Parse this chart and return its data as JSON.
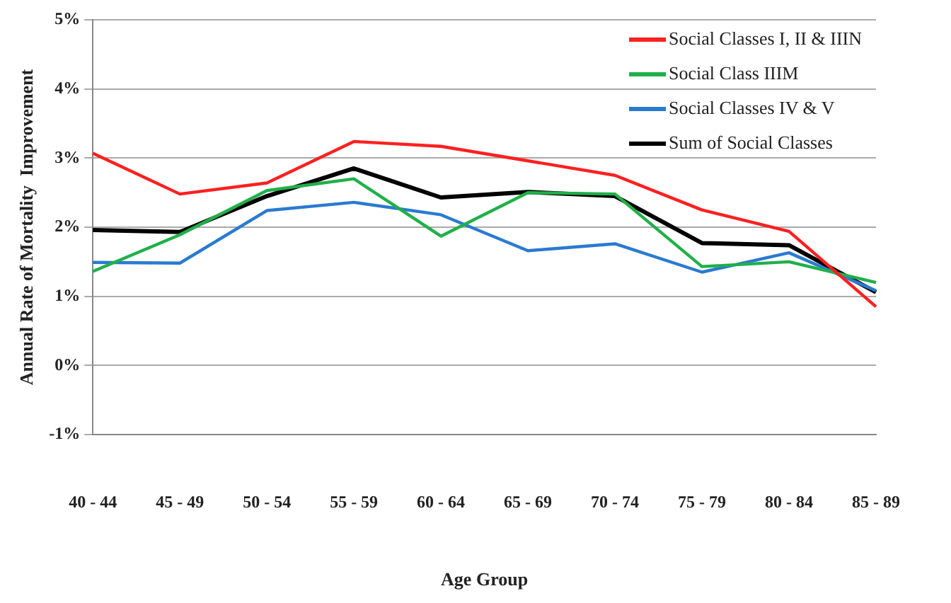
{
  "chart_data": {
    "type": "line",
    "xlabel": "Age Group",
    "ylabel": "Annual Rate of Mortality  Improvement",
    "categories": [
      "40 - 44",
      "45 - 49",
      "50 - 54",
      "55 - 59",
      "60 - 64",
      "65 - 69",
      "70 - 74",
      "75 - 79",
      "80 - 84",
      "85 - 89"
    ],
    "ylim": [
      -1,
      5
    ],
    "yticks": [
      {
        "value": -1,
        "label": "-1%"
      },
      {
        "value": 0,
        "label": "0%"
      },
      {
        "value": 1,
        "label": "1%"
      },
      {
        "value": 2,
        "label": "2%"
      },
      {
        "value": 3,
        "label": "3%"
      },
      {
        "value": 4,
        "label": "4%"
      },
      {
        "value": 5,
        "label": "5%"
      }
    ],
    "grid": "y",
    "legend": "top right",
    "marker": "none",
    "series": [
      {
        "name": "Social Classes I, II & IIIN",
        "color": "#ff2020",
        "values": [
          3.07,
          2.48,
          2.64,
          3.24,
          3.17,
          2.96,
          2.75,
          2.25,
          1.94,
          0.85
        ]
      },
      {
        "name": "Social Class IIIM",
        "color": "#20b04a",
        "values": [
          1.36,
          1.89,
          2.53,
          2.7,
          1.87,
          2.5,
          2.48,
          1.43,
          1.5,
          1.2
        ]
      },
      {
        "name": "Social Classes IV & V",
        "color": "#2a7ad0",
        "values": [
          1.49,
          1.48,
          2.24,
          2.36,
          2.18,
          1.66,
          1.76,
          1.35,
          1.63,
          1.08
        ]
      },
      {
        "name": "Sum of Social Classes",
        "color": "#000000",
        "values": [
          1.96,
          1.93,
          2.45,
          2.85,
          2.43,
          2.51,
          2.45,
          1.77,
          1.74,
          1.06
        ]
      }
    ]
  }
}
